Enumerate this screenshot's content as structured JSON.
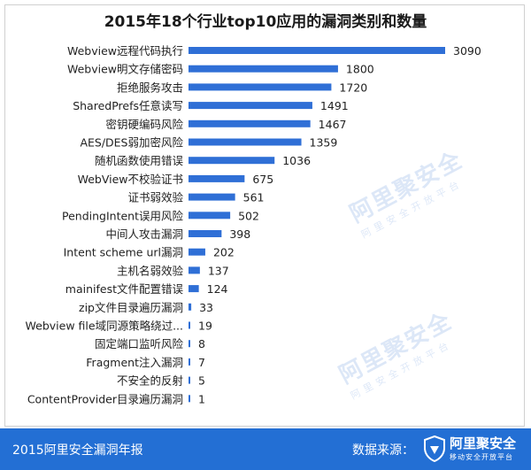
{
  "title": "2015年18个行业top10应用的漏洞类别和数量",
  "colors": {
    "bar": "#2f6fd6",
    "footer": "#236fd4",
    "text": "#222222"
  },
  "watermark": {
    "brand": "阿里聚安全",
    "slogan": "阿里安全开放平台"
  },
  "footer": {
    "left_text": "2015阿里安全漏洞年报",
    "source_label": "数据来源：",
    "brand": "阿里聚安全",
    "slogan": "移动安全开放平台",
    "logo_icon": "shield-icon"
  },
  "chart_data": {
    "type": "bar",
    "orientation": "horizontal",
    "categories": [
      "Webview远程代码执行",
      "Webview明文存储密码",
      "拒绝服务攻击",
      "SharedPrefs任意读写",
      "密钥硬编码风险",
      "AES/DES弱加密风险",
      "随机函数使用错误",
      "WebView不校验证书",
      "证书弱效验",
      "PendingIntent误用风险",
      "中间人攻击漏洞",
      "Intent scheme url漏洞",
      "主机名弱效验",
      "mainifest文件配置错误",
      "zip文件目录遍历漏洞",
      "Webview file域同源策略绕过...",
      "固定端口监听风险",
      "Fragment注入漏洞",
      "不安全的反射",
      "ContentProvider目录遍历漏洞"
    ],
    "values": [
      3090,
      1800,
      1720,
      1491,
      1467,
      1359,
      1036,
      675,
      561,
      502,
      398,
      202,
      137,
      124,
      33,
      19,
      8,
      7,
      5,
      1
    ],
    "xlim": [
      0,
      3090
    ],
    "grid": false,
    "legend": false,
    "data_labels": true
  }
}
